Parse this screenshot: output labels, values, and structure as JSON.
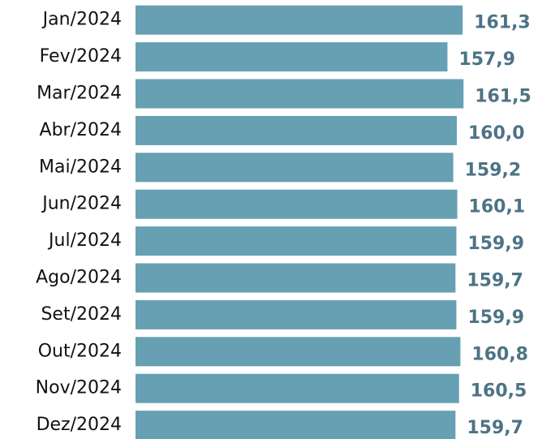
{
  "chart_data": {
    "type": "bar",
    "orientation": "horizontal",
    "categories": [
      "Jan/2024",
      "Fev/2024",
      "Mar/2024",
      "Abr/2024",
      "Mai/2024",
      "Jun/2024",
      "Jul/2024",
      "Ago/2024",
      "Set/2024",
      "Out/2024",
      "Nov/2024",
      "Dez/2024"
    ],
    "values": [
      161.3,
      157.9,
      161.5,
      160.0,
      159.2,
      160.1,
      159.9,
      159.7,
      159.9,
      160.8,
      160.5,
      159.7
    ],
    "value_labels": [
      "161,3",
      "157,9",
      "161,5",
      "160,0",
      "159,2",
      "160,1",
      "159,9",
      "159,7",
      "159,9",
      "160,8",
      "160,5",
      "159,7"
    ],
    "color": "#66a0b2",
    "xlim": [
      88,
      182
    ]
  }
}
